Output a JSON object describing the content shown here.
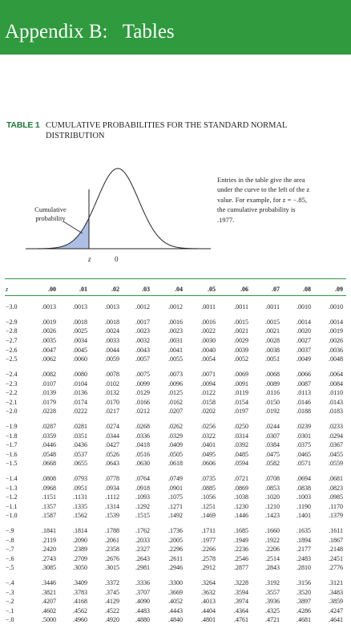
{
  "banner": {
    "title": "Appendix B:   Tables"
  },
  "table": {
    "tag": "TABLE 1",
    "caption": "CUMULATIVE PROBABILITIES FOR THE STANDARD NORMAL DISTRIBUTION"
  },
  "figure": {
    "note": "Entries in the table give the area under the curve to the left of the z value. For example, for z = −.85, the cumulative probability is .1977.",
    "cumulative_label": "Cumulative probability",
    "z_label": "z",
    "zero_label": "0",
    "shade_color": "#aebfe6"
  },
  "colors": {
    "banner": "#2f9a3e",
    "rule": "#2f9a3e",
    "tag": "#1f7a3a"
  },
  "columns": [
    "z",
    ".00",
    ".01",
    ".02",
    ".03",
    ".04",
    ".05",
    ".06",
    ".07",
    ".08",
    ".09"
  ],
  "rows": [
    [
      "−3.0",
      ".0013",
      ".0013",
      ".0013",
      ".0012",
      ".0012",
      ".0011",
      ".0011",
      ".0011",
      ".0010",
      ".0010"
    ],
    [
      "−2.9",
      ".0019",
      ".0018",
      ".0018",
      ".0017",
      ".0016",
      ".0016",
      ".0015",
      ".0015",
      ".0014",
      ".0014"
    ],
    [
      "−2.8",
      ".0026",
      ".0025",
      ".0024",
      ".0023",
      ".0023",
      ".0022",
      ".0021",
      ".0021",
      ".0020",
      ".0019"
    ],
    [
      "−2.7",
      ".0035",
      ".0034",
      ".0033",
      ".0032",
      ".0031",
      ".0030",
      ".0029",
      ".0028",
      ".0027",
      ".0026"
    ],
    [
      "−2.6",
      ".0047",
      ".0045",
      ".0044",
      ".0043",
      ".0041",
      ".0040",
      ".0039",
      ".0038",
      ".0037",
      ".0036"
    ],
    [
      "−2.5",
      ".0062",
      ".0060",
      ".0059",
      ".0057",
      ".0055",
      ".0054",
      ".0052",
      ".0051",
      ".0049",
      ".0048"
    ],
    [
      "−2.4",
      ".0082",
      ".0080",
      ".0078",
      ".0075",
      ".0073",
      ".0071",
      ".0069",
      ".0068",
      ".0066",
      ".0064"
    ],
    [
      "−2.3",
      ".0107",
      ".0104",
      ".0102",
      ".0099",
      ".0096",
      ".0094",
      ".0091",
      ".0089",
      ".0087",
      ".0084"
    ],
    [
      "−2.2",
      ".0139",
      ".0136",
      ".0132",
      ".0129",
      ".0125",
      ".0122",
      ".0119",
      ".0116",
      ".0113",
      ".0110"
    ],
    [
      "−2.1",
      ".0179",
      ".0174",
      ".0170",
      ".0166",
      ".0162",
      ".0158",
      ".0154",
      ".0150",
      ".0146",
      ".0143"
    ],
    [
      "−2.0",
      ".0228",
      ".0222",
      ".0217",
      ".0212",
      ".0207",
      ".0202",
      ".0197",
      ".0192",
      ".0188",
      ".0183"
    ],
    [
      "−1.9",
      ".0287",
      ".0281",
      ".0274",
      ".0268",
      ".0262",
      ".0256",
      ".0250",
      ".0244",
      ".0239",
      ".0233"
    ],
    [
      "−1.8",
      ".0359",
      ".0351",
      ".0344",
      ".0336",
      ".0329",
      ".0322",
      ".0314",
      ".0307",
      ".0301",
      ".0294"
    ],
    [
      "−1.7",
      ".0446",
      ".0436",
      ".0427",
      ".0418",
      ".0409",
      ".0401",
      ".0392",
      ".0384",
      ".0375",
      ".0367"
    ],
    [
      "−1.6",
      ".0548",
      ".0537",
      ".0526",
      ".0516",
      ".0505",
      ".0495",
      ".0485",
      ".0475",
      ".0465",
      ".0455"
    ],
    [
      "−1.5",
      ".0668",
      ".0655",
      ".0643",
      ".0630",
      ".0618",
      ".0606",
      ".0594",
      ".0582",
      ".0571",
      ".0559"
    ],
    [
      "−1.4",
      ".0808",
      ".0793",
      ".0778",
      ".0764",
      ".0749",
      ".0735",
      ".0721",
      ".0708",
      ".0694",
      ".0681"
    ],
    [
      "−1.3",
      ".0968",
      ".0951",
      ".0934",
      ".0918",
      ".0901",
      ".0885",
      ".0869",
      ".0853",
      ".0838",
      ".0823"
    ],
    [
      "−1.2",
      ".1151",
      ".1131",
      ".1112",
      ".1093",
      ".1075",
      ".1056",
      ".1038",
      ".1020",
      ".1003",
      ".0985"
    ],
    [
      "−1.1",
      ".1357",
      ".1335",
      ".1314",
      ".1292",
      ".1271",
      ".1251",
      ".1230",
      ".1210",
      ".1190",
      ".1170"
    ],
    [
      "−1.0",
      ".1587",
      ".1562",
      ".1539",
      ".1515",
      ".1492",
      ".1469",
      ".1446",
      ".1423",
      ".1401",
      ".1379"
    ],
    [
      "−.9",
      ".1841",
      ".1814",
      ".1788",
      ".1762",
      ".1736",
      ".1711",
      ".1685",
      ".1660",
      ".1635",
      ".1611"
    ],
    [
      "−.8",
      ".2119",
      ".2090",
      ".2061",
      ".2033",
      ".2005",
      ".1977",
      ".1949",
      ".1922",
      ".1894",
      ".1867"
    ],
    [
      "−.7",
      ".2420",
      ".2389",
      ".2358",
      ".2327",
      ".2296",
      ".2266",
      ".2236",
      ".2206",
      ".2177",
      ".2148"
    ],
    [
      "−.6",
      ".2743",
      ".2709",
      ".2676",
      ".2643",
      ".2611",
      ".2578",
      ".2546",
      ".2514",
      ".2483",
      ".2451"
    ],
    [
      "−.5",
      ".3085",
      ".3050",
      ".3015",
      ".2981",
      ".2946",
      ".2912",
      ".2877",
      ".2843",
      ".2810",
      ".2776"
    ],
    [
      "−.4",
      ".3446",
      ".3409",
      ".3372",
      ".3336",
      ".3300",
      ".3264",
      ".3228",
      ".3192",
      ".3156",
      ".3121"
    ],
    [
      "−.3",
      ".3821",
      ".3783",
      ".3745",
      ".3707",
      ".3669",
      ".3632",
      ".3594",
      ".3557",
      ".3520",
      ".3483"
    ],
    [
      "−.2",
      ".4207",
      ".4168",
      ".4129",
      ".4090",
      ".4052",
      ".4013",
      ".3974",
      ".3936",
      ".3897",
      ".3859"
    ],
    [
      "−.1",
      ".4602",
      ".4562",
      ".4522",
      ".4483",
      ".4443",
      ".4404",
      ".4364",
      ".4325",
      ".4286",
      ".4247"
    ],
    [
      "−.0",
      ".5000",
      ".4960",
      ".4920",
      ".4880",
      ".4840",
      ".4801",
      ".4761",
      ".4721",
      ".4681",
      ".4641"
    ]
  ]
}
